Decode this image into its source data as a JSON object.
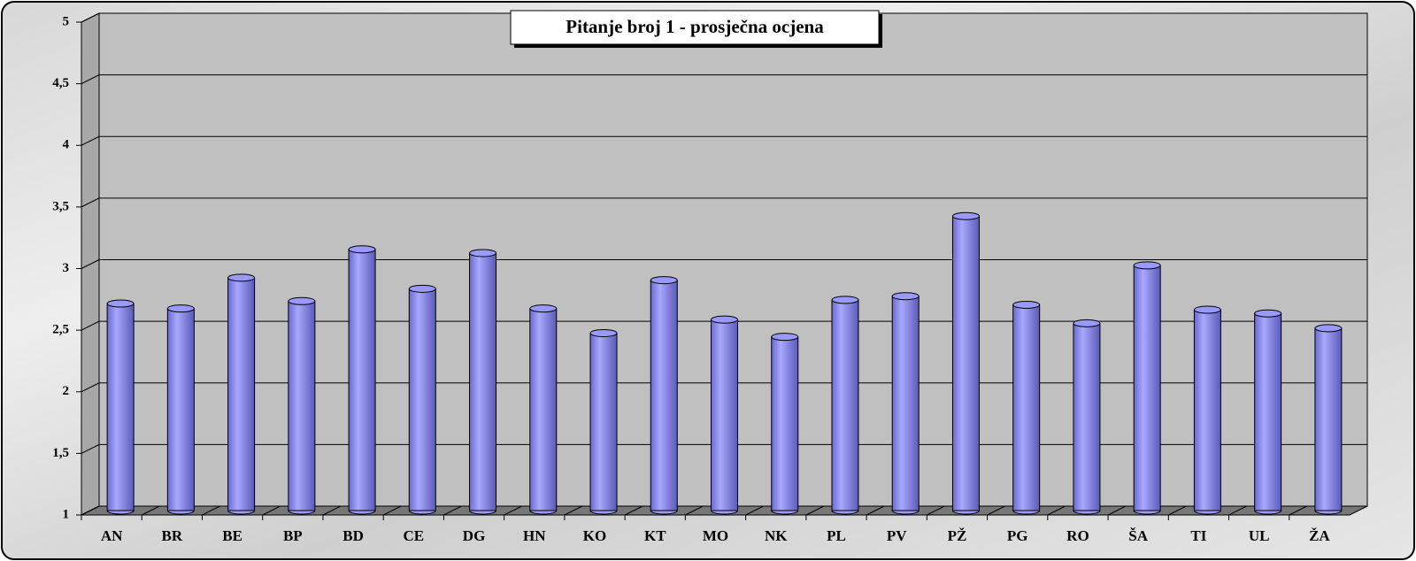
{
  "chart_data": {
    "type": "bar",
    "title": "Pitanje broj 1 - prosječna ocjena",
    "categories": [
      "AN",
      "BR",
      "BE",
      "BP",
      "BD",
      "CE",
      "DG",
      "HN",
      "KO",
      "KT",
      "MO",
      "NK",
      "PL",
      "PV",
      "PŽ",
      "PG",
      "RO",
      "ŠA",
      "TI",
      "UL",
      "ŽA"
    ],
    "values": [
      2.68,
      2.64,
      2.89,
      2.7,
      3.12,
      2.8,
      3.09,
      2.64,
      2.44,
      2.87,
      2.55,
      2.41,
      2.71,
      2.74,
      3.39,
      2.67,
      2.52,
      2.99,
      2.63,
      2.6,
      2.48
    ],
    "color": "#9999ff",
    "ylim": [
      1,
      5
    ],
    "yticks": [
      1,
      {
        "value": 1.5,
        "label": "1,5"
      },
      2,
      {
        "value": 2.5,
        "label": "2,5"
      },
      3,
      {
        "value": 3.5,
        "label": "3,5"
      },
      4,
      {
        "value": 4.5,
        "label": "4,5"
      },
      5
    ],
    "grid": true
  }
}
